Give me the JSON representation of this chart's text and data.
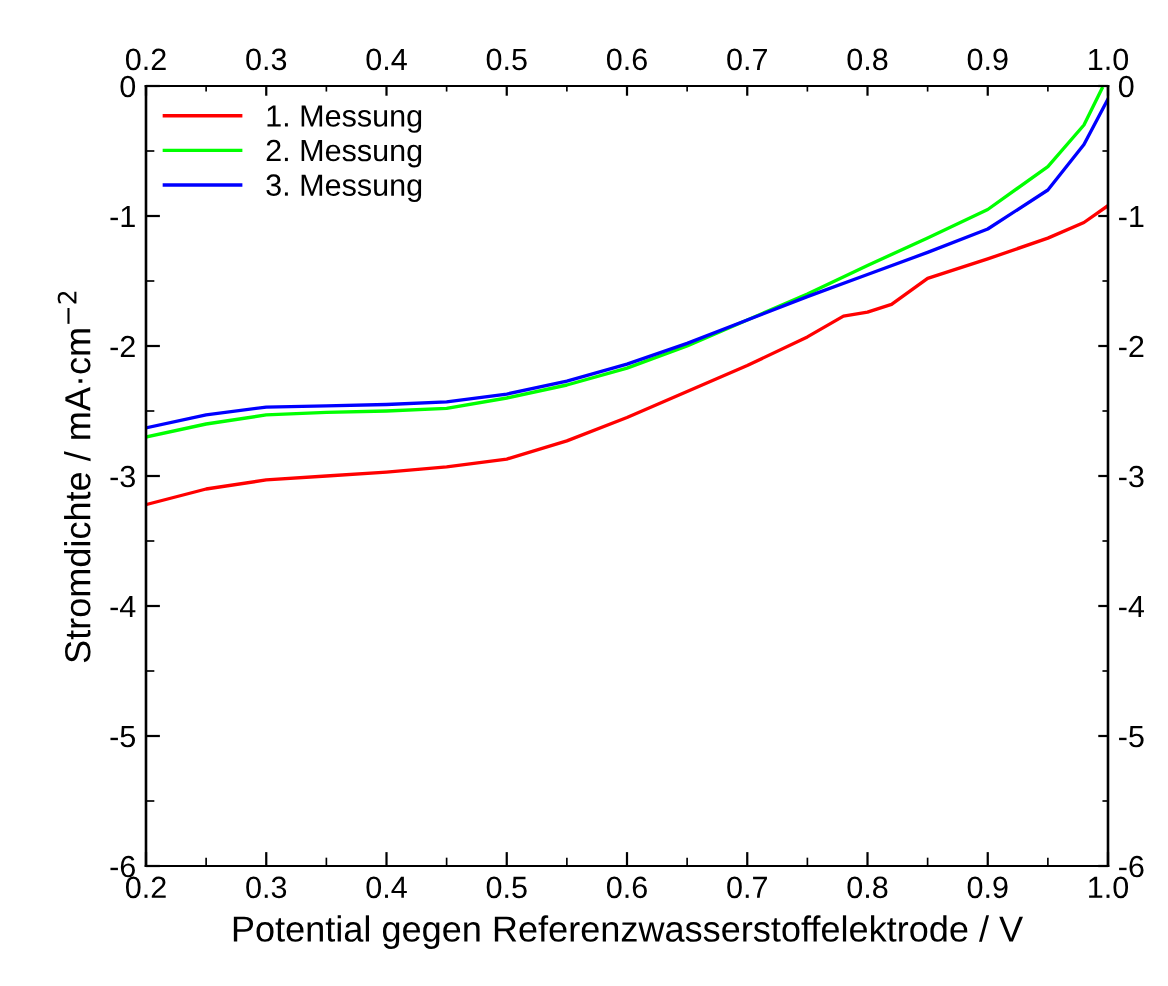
{
  "chart_data": {
    "type": "line",
    "xlabel": "Potential gegen Referenzwasserstoffelektrode / V",
    "ylabel": "Stromdichte / mA·cm$^{−2}$",
    "xlim": [
      0.2,
      1.0
    ],
    "xticks": [
      0.2,
      0.3,
      0.4,
      0.5,
      0.6,
      0.7,
      0.8,
      0.9,
      {
        "value": 1,
        "label": "1.0"
      }
    ],
    "x2lim": [
      0.2,
      1.0
    ],
    "x2ticks": [
      0.2,
      0.3,
      0.4,
      0.5,
      0.6,
      0.7,
      0.8,
      0.9,
      {
        "value": 1,
        "label": "1.0"
      }
    ],
    "ylim": [
      -6,
      0
    ],
    "yticks": [
      -6,
      -5,
      -4,
      -3,
      -2,
      -1,
      0
    ],
    "y2lim": [
      -6,
      0
    ],
    "y2ticks": [
      -6,
      -5,
      -4,
      -3,
      -2,
      -1,
      0
    ],
    "legend": "top left",
    "grid": false,
    "marker": "none",
    "line_style": "solid",
    "series": [
      {
        "name": "1. Messung",
        "color": "#ff0000",
        "x": [
          0.2,
          0.25,
          0.3,
          0.35,
          0.4,
          0.45,
          0.5,
          0.55,
          0.6,
          0.65,
          0.7,
          0.75,
          0.78,
          0.8,
          0.82,
          0.85,
          0.9,
          0.95,
          0.98,
          1.0
        ],
        "values": [
          -3.22,
          -3.1,
          -3.03,
          -3.0,
          -2.97,
          -2.93,
          -2.87,
          -2.73,
          -2.55,
          -2.35,
          -2.15,
          -1.93,
          -1.77,
          -1.74,
          -1.68,
          -1.48,
          -1.33,
          -1.17,
          -1.05,
          -0.92
        ]
      },
      {
        "name": "2. Messung",
        "color": "#00ff00",
        "x": [
          0.2,
          0.25,
          0.3,
          0.35,
          0.4,
          0.45,
          0.5,
          0.55,
          0.6,
          0.65,
          0.7,
          0.75,
          0.8,
          0.85,
          0.9,
          0.95,
          0.98,
          0.995
        ],
        "values": [
          -2.7,
          -2.6,
          -2.53,
          -2.51,
          -2.5,
          -2.48,
          -2.4,
          -2.3,
          -2.17,
          -2.0,
          -1.8,
          -1.6,
          -1.38,
          -1.17,
          -0.95,
          -0.62,
          -0.3,
          -0.02
        ]
      },
      {
        "name": "3. Messung",
        "color": "#0000ff",
        "x": [
          0.2,
          0.25,
          0.3,
          0.35,
          0.4,
          0.45,
          0.5,
          0.55,
          0.6,
          0.65,
          0.7,
          0.75,
          0.8,
          0.85,
          0.9,
          0.95,
          0.98,
          1.0
        ],
        "values": [
          -2.63,
          -2.53,
          -2.47,
          -2.46,
          -2.45,
          -2.43,
          -2.37,
          -2.27,
          -2.14,
          -1.98,
          -1.8,
          -1.62,
          -1.45,
          -1.28,
          -1.1,
          -0.8,
          -0.45,
          -0.1
        ]
      }
    ]
  }
}
